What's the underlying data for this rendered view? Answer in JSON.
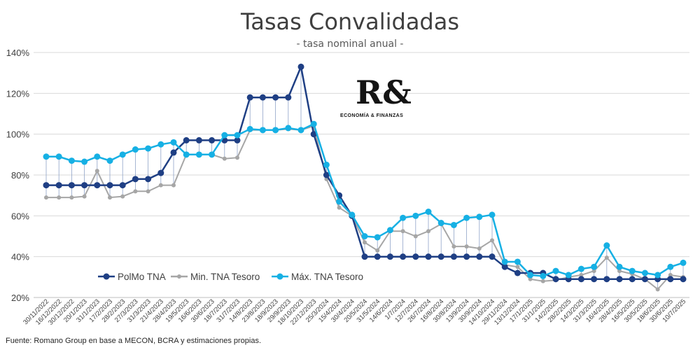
{
  "chart_data": {
    "type": "line",
    "title": "Tasas Convalidadas",
    "subtitle": "- tasa nominal anual -",
    "source": "Fuente: Romano Group en base a MECON, BCRA y estimaciones propias.",
    "logo": {
      "mark": "R&",
      "text": "ECONOMÍA & FINANZAS"
    },
    "y_ticks": [
      "20%",
      "40%",
      "60%",
      "80%",
      "100%",
      "120%",
      "140%"
    ],
    "ylim": [
      20,
      140
    ],
    "grid": "horizontal",
    "legend_position": "bottom-left",
    "categories": [
      "30/11/2022",
      "16/12/2022",
      "30/12/2022",
      "20/1/2023",
      "31/1/2023",
      "17/2/2023",
      "28/2/2023",
      "27/3/2023",
      "31/3/2023",
      "21/4/2023",
      "28/4/2023",
      "19/5/2023",
      "16/6/2023",
      "30/6/2023",
      "18/7/2023",
      "31/7/2023",
      "14/8/2023",
      "23/8/2023",
      "18/9/2023",
      "29/9/2023",
      "18/10/2023",
      "22/12/2023",
      "25/3/2024",
      "15/4/2024",
      "30/4/2024",
      "20/5/2024",
      "31/5/2024",
      "14/6/2024",
      "1/7/2024",
      "12/7/2024",
      "26/7/2024",
      "16/8/2024",
      "30/8/2024",
      "13/9/2024",
      "30/9/2024",
      "14/10/2024",
      "29/11/2024",
      "13/12/2024",
      "17/1/2025",
      "31/1/2025",
      "14/2/2025",
      "28/2/2025",
      "14/3/2025",
      "31/3/2025",
      "16/4/2025",
      "28/4/2025",
      "16/5/2025",
      "30/5/2025",
      "18/6/2025",
      "30/6/2025",
      "10/7/2025"
    ],
    "series": [
      {
        "name": "PolMo TNA",
        "color": "#1f3f84",
        "values": [
          75,
          75,
          75,
          75,
          75,
          75,
          75,
          78,
          78,
          81,
          91,
          97,
          97,
          97,
          97,
          97,
          118,
          118,
          118,
          118,
          133,
          100,
          80,
          70,
          60,
          40,
          40,
          40,
          40,
          40,
          40,
          40,
          40,
          40,
          40,
          40,
          35,
          32,
          32,
          32,
          29,
          29,
          29,
          29,
          29,
          29,
          29,
          29,
          29,
          29,
          29
        ]
      },
      {
        "name": "Min. TNA Tesoro",
        "color": "#a6a6a6",
        "values": [
          69,
          69,
          69,
          69.5,
          82,
          69,
          69.5,
          72,
          72,
          75,
          75,
          90,
          90,
          90,
          88,
          88.5,
          102,
          102,
          102,
          102.5,
          102,
          104,
          78,
          64,
          60,
          47,
          43,
          52.5,
          52.5,
          50,
          52.5,
          56,
          45,
          45,
          44,
          48,
          36,
          35,
          29,
          28,
          28.5,
          30,
          31,
          33,
          39.5,
          33,
          31.5,
          29,
          24,
          31,
          30
        ]
      },
      {
        "name": "Máx. TNA Tesoro",
        "color": "#16b0e4",
        "values": [
          89,
          89,
          87,
          86.5,
          89,
          87,
          90,
          92.5,
          93,
          95,
          96,
          90,
          90,
          90,
          99.5,
          99.5,
          102.5,
          102,
          102,
          103,
          102,
          105,
          85,
          67,
          60.5,
          50,
          49.5,
          53,
          59,
          60,
          62,
          56.5,
          55.5,
          59,
          59.5,
          60.5,
          37.5,
          37.5,
          31,
          30.5,
          33,
          31,
          34,
          35,
          45.5,
          35,
          33,
          32,
          31,
          35,
          37
        ]
      }
    ]
  }
}
